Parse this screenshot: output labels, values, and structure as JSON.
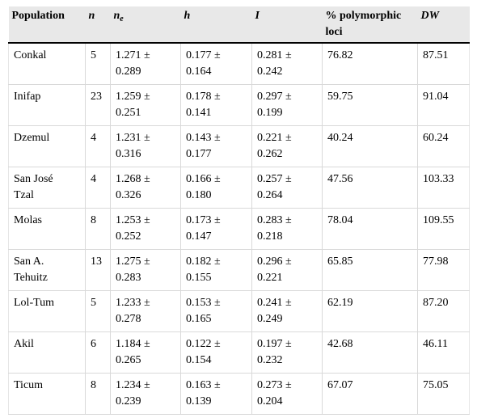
{
  "table": {
    "headers": {
      "population": "Population",
      "n": "n",
      "ne_main": "n",
      "ne_sub": "e",
      "h": "h",
      "i": "I",
      "poly_line1": "% polymorphic",
      "poly_line2": "loci",
      "dw": "DW"
    },
    "rows": [
      {
        "population": [
          "Conkal",
          ""
        ],
        "n": "5",
        "ne": [
          "1.271 ±",
          "0.289"
        ],
        "h": [
          "0.177 ±",
          "0.164"
        ],
        "i": [
          "0.281 ±",
          "0.242"
        ],
        "poly": "76.82",
        "dw": "87.51"
      },
      {
        "population": [
          "Inifap",
          ""
        ],
        "n": "23",
        "ne": [
          "1.259 ±",
          "0.251"
        ],
        "h": [
          "0.178 ±",
          "0.141"
        ],
        "i": [
          "0.297 ±",
          "0.199"
        ],
        "poly": "59.75",
        "dw": "91.04"
      },
      {
        "population": [
          "Dzemul",
          ""
        ],
        "n": "4",
        "ne": [
          "1.231 ±",
          "0.316"
        ],
        "h": [
          "0.143 ±",
          "0.177"
        ],
        "i": [
          "0.221 ±",
          "0.262"
        ],
        "poly": "40.24",
        "dw": "60.24"
      },
      {
        "population": [
          "San José",
          "Tzal"
        ],
        "n": "4",
        "ne": [
          "1.268 ±",
          "0.326"
        ],
        "h": [
          "0.166 ±",
          "0.180"
        ],
        "i": [
          "0.257 ±",
          "0.264"
        ],
        "poly": "47.56",
        "dw": "103.33"
      },
      {
        "population": [
          "Molas",
          ""
        ],
        "n": "8",
        "ne": [
          "1.253 ±",
          "0.252"
        ],
        "h": [
          "0.173 ±",
          "0.147"
        ],
        "i": [
          "0.283 ±",
          "0.218"
        ],
        "poly": "78.04",
        "dw": "109.55"
      },
      {
        "population": [
          "San A.",
          "Tehuitz"
        ],
        "n": "13",
        "ne": [
          "1.275 ±",
          "0.283"
        ],
        "h": [
          "0.182 ±",
          "0.155"
        ],
        "i": [
          "0.296 ±",
          "0.221"
        ],
        "poly": "65.85",
        "dw": "77.98"
      },
      {
        "population": [
          "Lol-Tum",
          ""
        ],
        "n": "5",
        "ne": [
          "1.233 ±",
          "0.278"
        ],
        "h": [
          "0.153 ±",
          "0.165"
        ],
        "i": [
          "0.241 ±",
          "0.249"
        ],
        "poly": "62.19",
        "dw": "87.20"
      },
      {
        "population": [
          "Akil",
          ""
        ],
        "n": "6",
        "ne": [
          "1.184 ±",
          "0.265"
        ],
        "h": [
          "0.122 ±",
          "0.154"
        ],
        "i": [
          "0.197 ±",
          "0.232"
        ],
        "poly": "42.68",
        "dw": "46.11"
      },
      {
        "population": [
          "Ticum",
          ""
        ],
        "n": "8",
        "ne": [
          "1.234 ±",
          "0.239"
        ],
        "h": [
          "0.163 ±",
          "0.139"
        ],
        "i": [
          "0.273 ±",
          "0.204"
        ],
        "poly": "67.07",
        "dw": "75.05"
      }
    ]
  }
}
